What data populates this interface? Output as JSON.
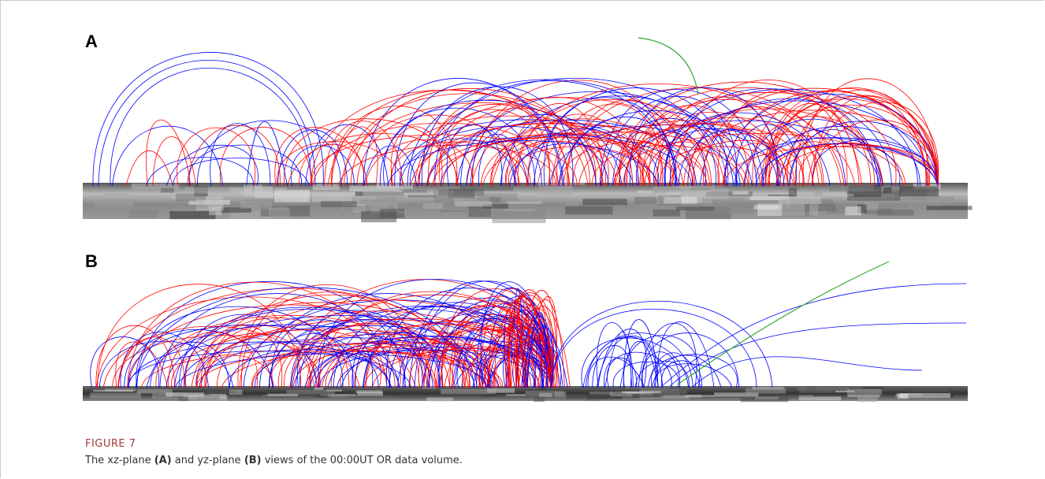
{
  "panels": [
    {
      "label": "A"
    },
    {
      "label": "B"
    }
  ],
  "figure": {
    "number": "FIGURE 7",
    "caption": [
      "The xz-plane ",
      "(A)",
      " and yz-plane ",
      "(B)",
      " views of the 00:00UT OR data volume."
    ]
  }
}
